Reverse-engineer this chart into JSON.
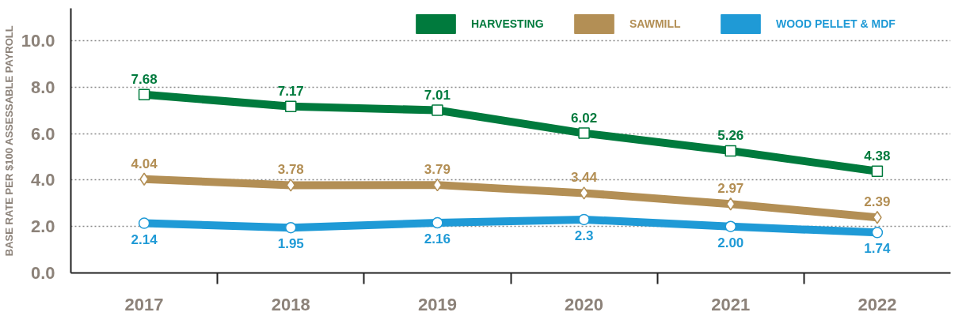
{
  "chart_data": {
    "type": "line",
    "ylabel": "BASE RATE PER $100 ASSESSABLE PAYROLL",
    "categories": [
      "2017",
      "2018",
      "2019",
      "2020",
      "2021",
      "2022"
    ],
    "ylim": [
      0,
      11.4
    ],
    "yticks": [
      {
        "value": 0,
        "label": "0.0"
      },
      {
        "value": 2,
        "label": "2.0"
      },
      {
        "value": 4,
        "label": "4.0"
      },
      {
        "value": 6,
        "label": "6.0"
      },
      {
        "value": 8,
        "label": "8.0"
      },
      {
        "value": 10,
        "label": "10.0"
      }
    ],
    "grid": "y",
    "legend": "top right",
    "line_style": "solid",
    "series": [
      {
        "name": "HARVESTING",
        "color": "#007a3d",
        "marker": "square",
        "values": [
          7.68,
          7.17,
          7.01,
          6.02,
          5.26,
          4.38
        ],
        "value_labels": [
          "7.68",
          "7.17",
          "7.01",
          "6.02",
          "5.26",
          "4.38"
        ]
      },
      {
        "name": "SAWMILL",
        "color": "#b38f55",
        "marker": "diamond",
        "values": [
          4.04,
          3.78,
          3.79,
          3.44,
          2.97,
          2.39
        ],
        "value_labels": [
          "4.04",
          "3.78",
          "3.79",
          "3.44",
          "2.97",
          "2.39"
        ]
      },
      {
        "name": "WOOD PELLET & MDF",
        "color": "#1f9ad6",
        "marker": "circle",
        "values": [
          2.14,
          1.95,
          2.16,
          2.3,
          2.0,
          1.74
        ],
        "value_labels": [
          "2.14",
          "1.95",
          "2.16",
          "2.3",
          "2.00",
          "1.74"
        ]
      }
    ]
  }
}
